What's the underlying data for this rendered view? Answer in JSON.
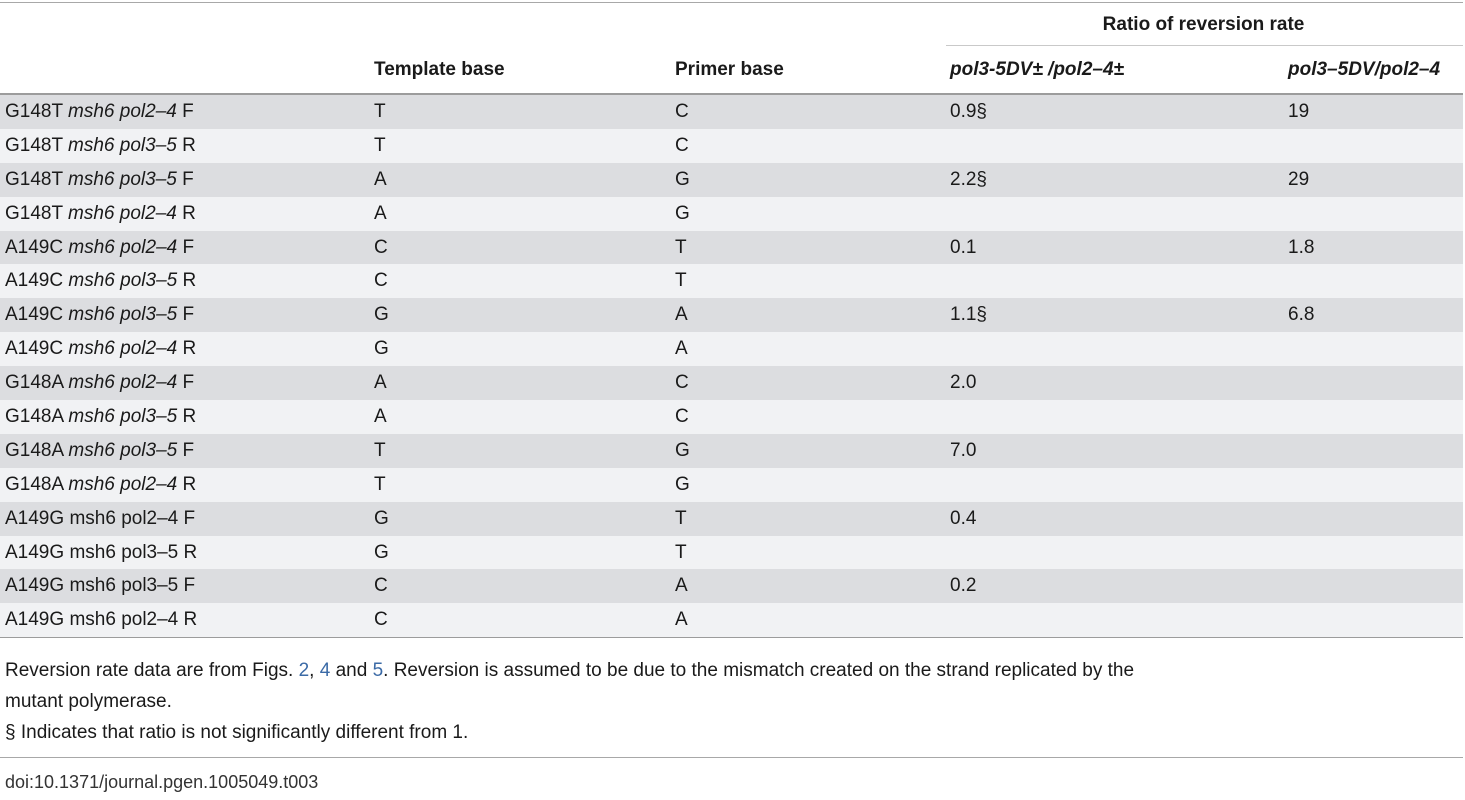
{
  "header": {
    "group_title": "Ratio of reversion rate",
    "col_label": "",
    "col_template": "Template base",
    "col_primer": "Primer base",
    "col_ratio1": "pol3-5DV± /pol2–4±",
    "col_ratio2": "pol3–5DV/pol2–4"
  },
  "rows": [
    {
      "allele": "G148T",
      "g1": "msh6",
      "g2": "pol2–4",
      "strand": "F",
      "g_italic": true,
      "template": "T",
      "primer": "C",
      "r1": "0.9§",
      "r2": "19"
    },
    {
      "allele": "G148T",
      "g1": "msh6",
      "g2": "pol3–5",
      "strand": "R",
      "g_italic": true,
      "template": "T",
      "primer": "C",
      "r1": "",
      "r2": ""
    },
    {
      "allele": "G148T",
      "g1": "msh6",
      "g2": "pol3–5",
      "strand": "F",
      "g_italic": true,
      "template": "A",
      "primer": "G",
      "r1": "2.2§",
      "r2": "29"
    },
    {
      "allele": "G148T",
      "g1": "msh6",
      "g2": "pol2–4",
      "strand": "R",
      "g_italic": true,
      "template": "A",
      "primer": "G",
      "r1": "",
      "r2": ""
    },
    {
      "allele": "A149C",
      "g1": "msh6",
      "g2": "pol2–4",
      "strand": "F",
      "g_italic": true,
      "template": "C",
      "primer": "T",
      "r1": "0.1",
      "r2": "1.8"
    },
    {
      "allele": "A149C",
      "g1": "msh6",
      "g2": "pol3–5",
      "strand": "R",
      "g_italic": true,
      "template": "C",
      "primer": "T",
      "r1": "",
      "r2": ""
    },
    {
      "allele": "A149C",
      "g1": "msh6",
      "g2": "pol3–5",
      "strand": "F",
      "g_italic": true,
      "template": "G",
      "primer": "A",
      "r1": "1.1§",
      "r2": "6.8"
    },
    {
      "allele": "A149C",
      "g1": "msh6",
      "g2": "pol2–4",
      "strand": "R",
      "g_italic": true,
      "template": "G",
      "primer": "A",
      "r1": "",
      "r2": ""
    },
    {
      "allele": "G148A",
      "g1": "msh6",
      "g2": "pol2–4",
      "strand": "F",
      "g_italic": true,
      "template": "A",
      "primer": "C",
      "r1": "2.0",
      "r2": ""
    },
    {
      "allele": "G148A",
      "g1": "msh6",
      "g2": "pol3–5",
      "strand": "R",
      "g_italic": true,
      "template": "A",
      "primer": "C",
      "r1": "",
      "r2": ""
    },
    {
      "allele": "G148A",
      "g1": "msh6",
      "g2": "pol3–5",
      "strand": "F",
      "g_italic": true,
      "template": "T",
      "primer": "G",
      "r1": "7.0",
      "r2": ""
    },
    {
      "allele": "G148A",
      "g1": "msh6",
      "g2": "pol2–4",
      "strand": "R",
      "g_italic": true,
      "template": "T",
      "primer": "G",
      "r1": "",
      "r2": ""
    },
    {
      "allele": "A149G",
      "g1": "msh6",
      "g2": "pol2–4",
      "strand": "F",
      "g_italic": false,
      "template": "G",
      "primer": "T",
      "r1": "0.4",
      "r2": ""
    },
    {
      "allele": "A149G",
      "g1": "msh6",
      "g2": "pol3–5",
      "strand": "R",
      "g_italic": false,
      "template": "G",
      "primer": "T",
      "r1": "",
      "r2": ""
    },
    {
      "allele": "A149G",
      "g1": "msh6",
      "g2": "pol3–5",
      "strand": "F",
      "g_italic": false,
      "template": "C",
      "primer": "A",
      "r1": "0.2",
      "r2": ""
    },
    {
      "allele": "A149G",
      "g1": "msh6",
      "g2": "pol2–4",
      "strand": "R",
      "g_italic": false,
      "template": "C",
      "primer": "A",
      "r1": "",
      "r2": ""
    }
  ],
  "notes": {
    "line1_pre": "Reversion rate data are from Figs.",
    "ref1": "2",
    "sep1": ",",
    "ref2": "4",
    "and": "and",
    "ref3": "5",
    "line1_post": ". Reversion is assumed to be due to the mismatch created on the strand replicated by the",
    "line2": "mutant polymerase.",
    "line3": "§ Indicates that ratio is not significantly different from 1."
  },
  "doi": "doi:10.1371/journal.pgen.1005049.t003"
}
